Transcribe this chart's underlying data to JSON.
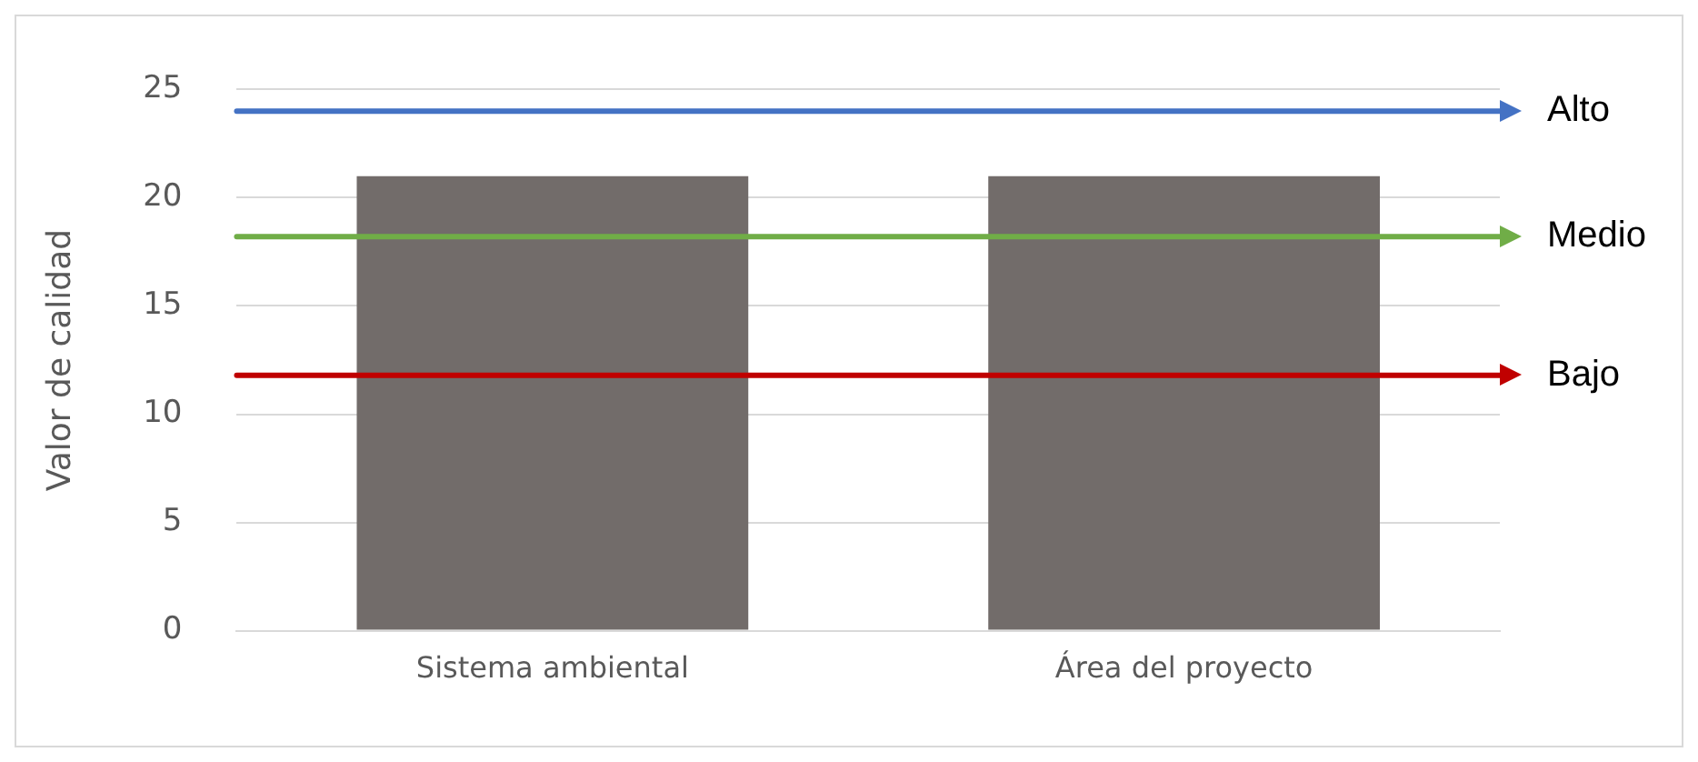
{
  "chart_data": {
    "type": "bar",
    "ylabel": "Valor de calidad",
    "categories": [
      "Sistema ambiental",
      "Área del proyecto"
    ],
    "values": [
      21,
      21
    ],
    "color": "#726c6a",
    "ylim": [
      0,
      25
    ],
    "yticks": [
      0,
      5,
      10,
      15,
      20,
      25
    ],
    "grid": "y",
    "legend": false,
    "ref_lines": [
      {
        "axis": "y",
        "value": 24,
        "label": "Alto",
        "color": "#4472c4"
      },
      {
        "axis": "y",
        "value": 18.2,
        "label": "Medio",
        "color": "#70ad47"
      },
      {
        "axis": "y",
        "value": 11.8,
        "label": "Bajo",
        "color": "#c00000"
      }
    ]
  }
}
